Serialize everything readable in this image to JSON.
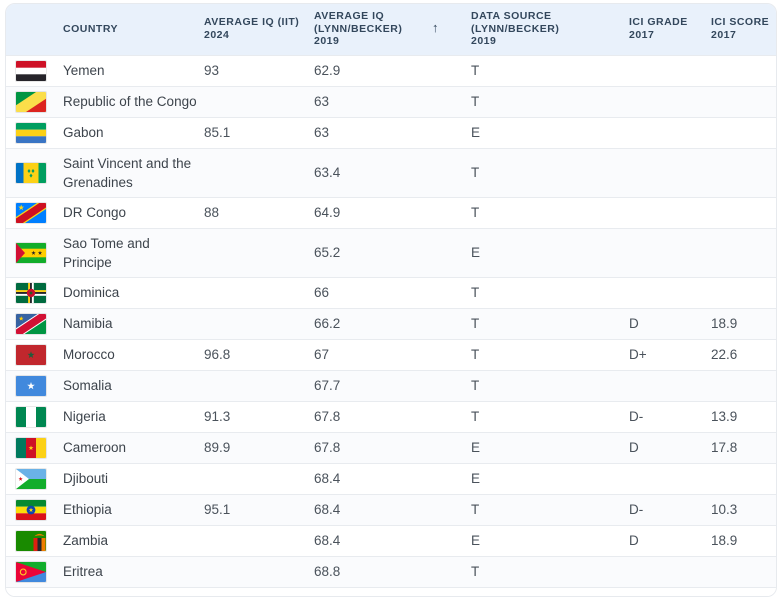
{
  "header": {
    "columns": [
      {
        "id": "country",
        "label": "COUNTRY"
      },
      {
        "id": "iq_iit",
        "label": "AVERAGE IQ (IIT) 2024"
      },
      {
        "id": "iq_lynn",
        "label": "AVERAGE IQ (LYNN/BECKER) 2019",
        "sorted": true
      },
      {
        "id": "source",
        "label": "DATA SOURCE (LYNN/BECKER) 2019"
      },
      {
        "id": "ici_grade",
        "label": "ICI GRADE 2017"
      },
      {
        "id": "ici_score",
        "label": "ICI SCORE 2017"
      }
    ],
    "sort_icon": "↑",
    "sort_direction": "ascending"
  },
  "rows": [
    {
      "flag": "ye",
      "country": "Yemen",
      "iq_iit": "93",
      "iq_lynn": "62.9",
      "source": "T",
      "ici_grade": "",
      "ici_score": ""
    },
    {
      "flag": "cg",
      "country": "Republic of the Congo",
      "iq_iit": "",
      "iq_lynn": "63",
      "source": "T",
      "ici_grade": "",
      "ici_score": ""
    },
    {
      "flag": "ga",
      "country": "Gabon",
      "iq_iit": "85.1",
      "iq_lynn": "63",
      "source": "E",
      "ici_grade": "",
      "ici_score": ""
    },
    {
      "flag": "vc",
      "country": "Saint Vincent and the Grenadines",
      "iq_iit": "",
      "iq_lynn": "63.4",
      "source": "T",
      "ici_grade": "",
      "ici_score": ""
    },
    {
      "flag": "cd",
      "country": "DR Congo",
      "iq_iit": "88",
      "iq_lynn": "64.9",
      "source": "T",
      "ici_grade": "",
      "ici_score": ""
    },
    {
      "flag": "st",
      "country": "Sao Tome and Principe",
      "iq_iit": "",
      "iq_lynn": "65.2",
      "source": "E",
      "ici_grade": "",
      "ici_score": ""
    },
    {
      "flag": "dm",
      "country": "Dominica",
      "iq_iit": "",
      "iq_lynn": "66",
      "source": "T",
      "ici_grade": "",
      "ici_score": ""
    },
    {
      "flag": "na",
      "country": "Namibia",
      "iq_iit": "",
      "iq_lynn": "66.2",
      "source": "T",
      "ici_grade": "D",
      "ici_score": "18.9"
    },
    {
      "flag": "ma",
      "country": "Morocco",
      "iq_iit": "96.8",
      "iq_lynn": "67",
      "source": "T",
      "ici_grade": "D+",
      "ici_score": "22.6"
    },
    {
      "flag": "so",
      "country": "Somalia",
      "iq_iit": "",
      "iq_lynn": "67.7",
      "source": "T",
      "ici_grade": "",
      "ici_score": ""
    },
    {
      "flag": "ng",
      "country": "Nigeria",
      "iq_iit": "91.3",
      "iq_lynn": "67.8",
      "source": "T",
      "ici_grade": "D-",
      "ici_score": "13.9"
    },
    {
      "flag": "cm",
      "country": "Cameroon",
      "iq_iit": "89.9",
      "iq_lynn": "67.8",
      "source": "E",
      "ici_grade": "D",
      "ici_score": "17.8"
    },
    {
      "flag": "dj",
      "country": "Djibouti",
      "iq_iit": "",
      "iq_lynn": "68.4",
      "source": "E",
      "ici_grade": "",
      "ici_score": ""
    },
    {
      "flag": "et",
      "country": "Ethiopia",
      "iq_iit": "95.1",
      "iq_lynn": "68.4",
      "source": "T",
      "ici_grade": "D-",
      "ici_score": "10.3"
    },
    {
      "flag": "zm",
      "country": "Zambia",
      "iq_iit": "",
      "iq_lynn": "68.4",
      "source": "E",
      "ici_grade": "D",
      "ici_score": "18.9"
    },
    {
      "flag": "er",
      "country": "Eritrea",
      "iq_iit": "",
      "iq_lynn": "68.8",
      "source": "T",
      "ici_grade": "",
      "ici_score": ""
    }
  ],
  "colors": {
    "header_bg": "#e9f1fb",
    "header_text": "#33475c",
    "body_text": "#4a525b",
    "country_text": "#3d444c",
    "row_border": "#e8ebef",
    "alt_row_bg": "#fafbfd",
    "card_bg": "#ffffff"
  }
}
